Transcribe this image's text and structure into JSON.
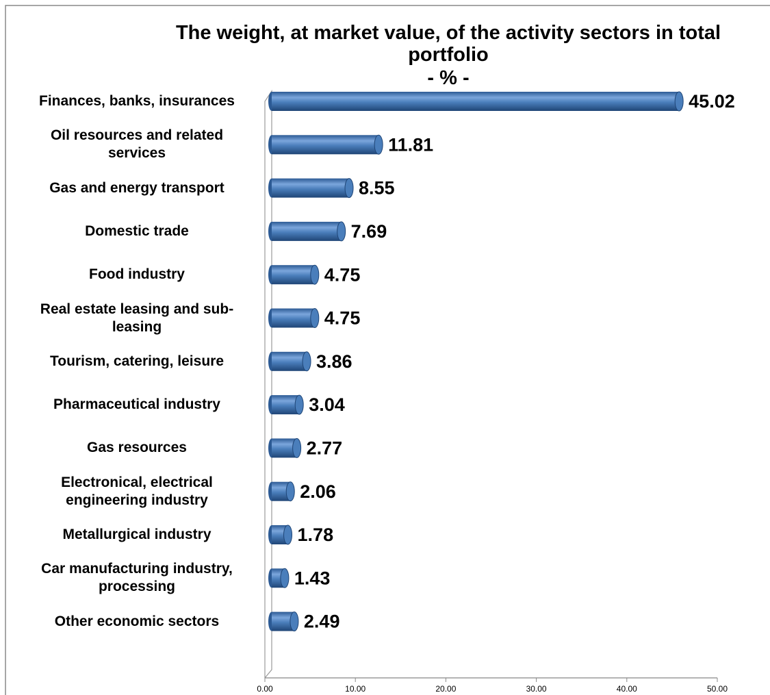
{
  "chart_data": {
    "type": "bar",
    "orientation": "horizontal",
    "title": "The weight, at market value, of the activity sectors in total portfolio",
    "subtitle": "- % -",
    "categories": [
      "Finances, banks, insurances",
      "Oil resources and related services",
      "Gas and energy transport",
      "Domestic trade",
      "Food industry",
      "Real estate leasing and sub-leasing",
      "Tourism, catering, leisure",
      "Pharmaceutical industry",
      "Gas resources",
      "Electronical, electrical engineering industry",
      "Metallurgical industry",
      "Car manufacturing industry, processing",
      "Other economic sectors"
    ],
    "values": [
      45.02,
      11.81,
      8.55,
      7.69,
      4.75,
      4.75,
      3.86,
      3.04,
      2.77,
      2.06,
      1.78,
      1.43,
      2.49
    ],
    "color": "#4a7ebb",
    "xlim": [
      0,
      50
    ],
    "xticks": [
      {
        "value": 0,
        "label": "0.00"
      },
      {
        "value": 10,
        "label": "10.00"
      },
      {
        "value": 20,
        "label": "20.00"
      },
      {
        "value": 30,
        "label": "30.00"
      },
      {
        "value": 40,
        "label": "40.00"
      },
      {
        "value": 50,
        "label": "50.00"
      }
    ]
  }
}
